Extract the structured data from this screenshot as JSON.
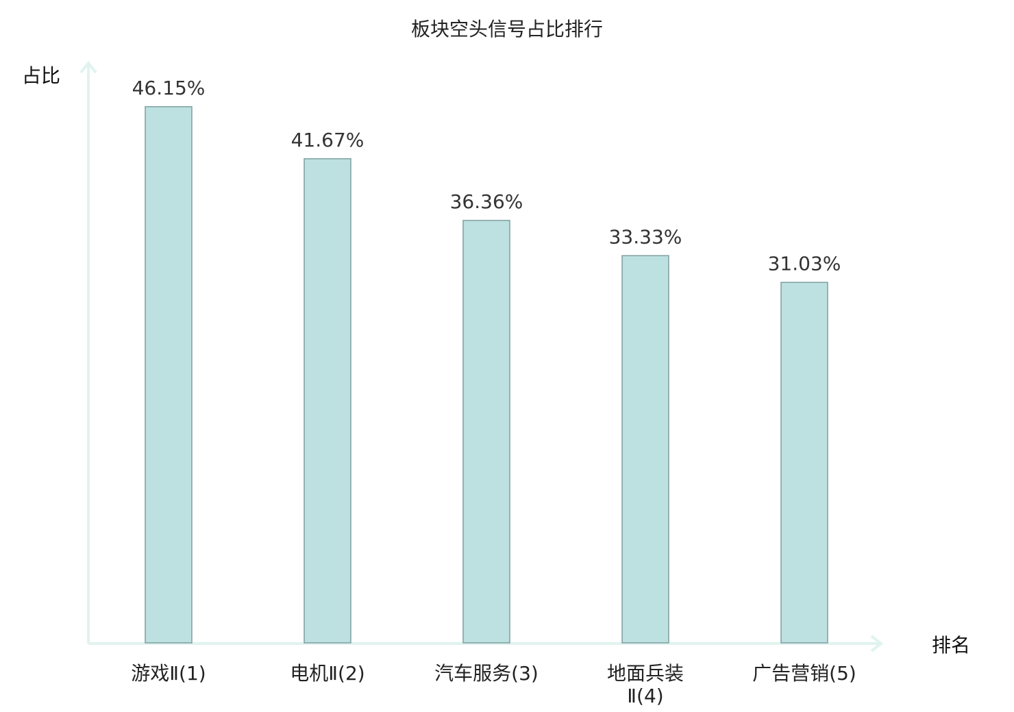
{
  "chart_data": {
    "type": "bar",
    "title": "板块空头信号占比排行",
    "ylabel": "占比",
    "xlabel": "排名",
    "categories": [
      "游戏Ⅱ(1)",
      "电机Ⅱ(2)",
      "汽车服务(3)",
      "地面兵装Ⅱ(4)",
      "广告营销(5)"
    ],
    "values": [
      46.15,
      41.67,
      36.36,
      33.33,
      31.03
    ],
    "value_labels": [
      "46.15%",
      "41.67%",
      "36.36%",
      "33.33%",
      "31.03%"
    ],
    "highlight_index": 4,
    "ylim": [
      0,
      50
    ],
    "grid": false,
    "colors": {
      "bar_fill": "#bde0e1",
      "bar_stroke": "#7f9ea0",
      "axis": "#e0f3ef",
      "highlight_text": "#e02020",
      "text": "#222222"
    }
  }
}
